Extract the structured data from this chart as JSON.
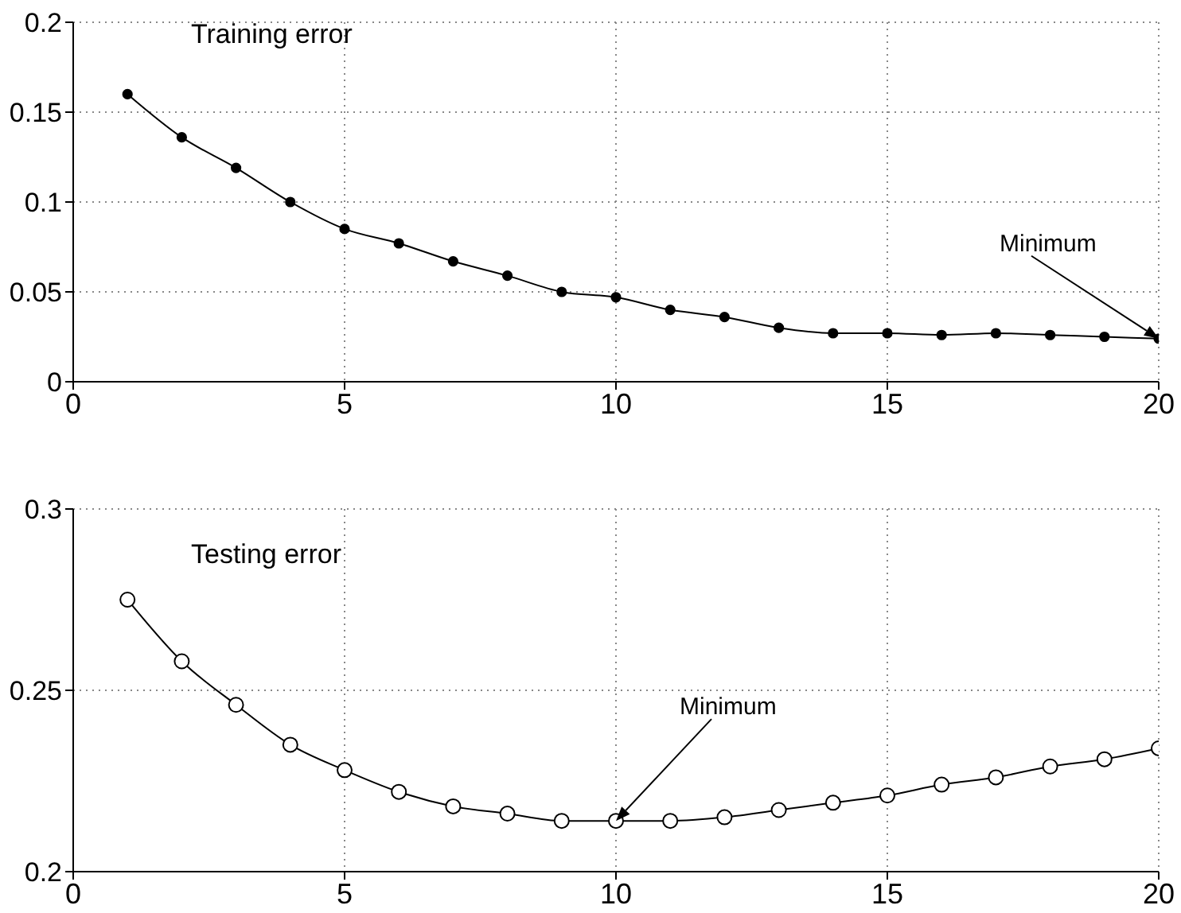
{
  "chart_data": [
    {
      "type": "line",
      "x": [
        1,
        2,
        3,
        4,
        5,
        6,
        7,
        8,
        9,
        10,
        11,
        12,
        13,
        14,
        15,
        16,
        17,
        18,
        19,
        20
      ],
      "series": [
        {
          "name": "Training error",
          "color": "#000000",
          "values": [
            0.16,
            0.136,
            0.119,
            0.1,
            0.085,
            0.077,
            0.067,
            0.059,
            0.05,
            0.047,
            0.04,
            0.036,
            0.03,
            0.027,
            0.027,
            0.026,
            0.027,
            0.026,
            0.025,
            0.024
          ]
        }
      ],
      "xlim": [
        0,
        20
      ],
      "xticks": [
        0,
        5,
        10,
        15,
        20
      ],
      "ylim": [
        0,
        0.2
      ],
      "yticks": [
        0,
        0.05,
        0.1,
        0.15,
        0.2
      ],
      "grid": true,
      "marker": "circle",
      "line_style": "solid",
      "legend": false,
      "annotations": [
        {
          "text": "Minimum",
          "x": 20,
          "y": 0.024
        }
      ]
    },
    {
      "type": "line",
      "x": [
        1,
        2,
        3,
        4,
        5,
        6,
        7,
        8,
        9,
        10,
        11,
        12,
        13,
        14,
        15,
        16,
        17,
        18,
        19,
        20
      ],
      "series": [
        {
          "name": "Testing error",
          "color": "#000000",
          "values": [
            0.275,
            0.258,
            0.246,
            0.235,
            0.228,
            0.222,
            0.218,
            0.216,
            0.214,
            0.214,
            0.214,
            0.215,
            0.217,
            0.219,
            0.221,
            0.224,
            0.226,
            0.229,
            0.231,
            0.234
          ]
        }
      ],
      "xlim": [
        0,
        20
      ],
      "xticks": [
        0,
        5,
        10,
        15,
        20
      ],
      "ylim": [
        0.2,
        0.3
      ],
      "yticks": [
        0.2,
        0.25,
        0.3
      ],
      "grid": true,
      "marker": "circle",
      "line_style": "solid",
      "legend": false,
      "annotations": [
        {
          "text": "Minimum",
          "x": 10,
          "y": 0.214
        }
      ]
    }
  ]
}
